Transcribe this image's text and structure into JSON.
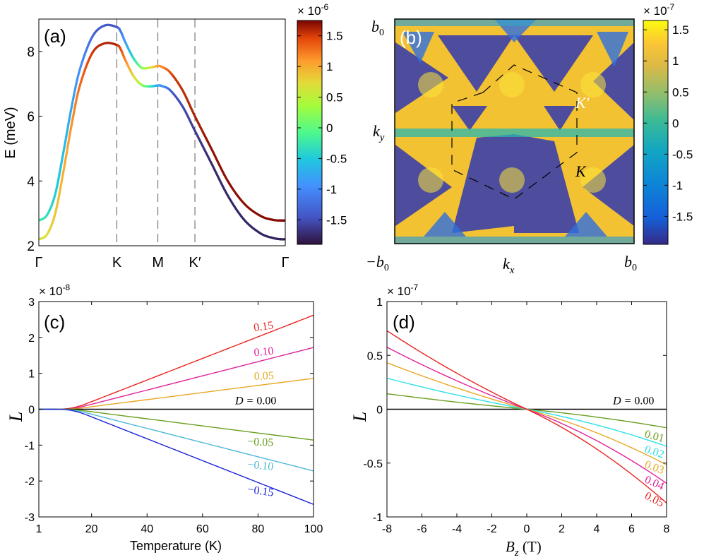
{
  "chart_data": [
    {
      "panel": "a",
      "type": "line",
      "label": "(a)",
      "ylabel": "E (meV)",
      "xlabel": "",
      "ylim": [
        2,
        9
      ],
      "yticks": [
        2,
        4,
        6,
        8
      ],
      "xtick_labels": [
        "Γ",
        "K",
        "M",
        "K′",
        "Γ"
      ],
      "x": [
        0,
        0.2,
        0.4,
        0.6,
        0.8,
        1.0,
        1.3,
        1.6,
        1.9,
        2.0,
        2.1,
        2.3,
        2.5,
        2.7,
        2.9,
        3.0,
        3.2,
        3.5,
        3.8,
        4.2,
        4.6,
        5.0,
        5.4,
        5.7,
        5.9,
        6.0
      ],
      "series": [
        {
          "name": "upper band",
          "values": [
            2.78,
            2.95,
            3.6,
            4.9,
            6.3,
            7.45,
            8.45,
            8.8,
            8.75,
            8.6,
            8.3,
            7.8,
            7.5,
            7.5,
            7.55,
            7.52,
            7.35,
            6.8,
            6.0,
            5.0,
            4.0,
            3.3,
            2.92,
            2.8,
            2.78,
            2.78
          ]
        },
        {
          "name": "lower band",
          "values": [
            2.2,
            2.35,
            3.0,
            4.3,
            5.75,
            6.95,
            7.95,
            8.25,
            8.2,
            8.05,
            7.75,
            7.25,
            6.97,
            6.92,
            6.95,
            6.93,
            6.8,
            6.3,
            5.55,
            4.55,
            3.55,
            2.8,
            2.38,
            2.24,
            2.2,
            2.2
          ]
        }
      ],
      "colorbar": {
        "ticks": [
          "1.5",
          "1",
          "0.5",
          "0",
          "-0.5",
          "-1",
          "-1.5"
        ],
        "tick_values": [
          1.5,
          1,
          0.5,
          0,
          -0.5,
          -1,
          -1.5
        ],
        "range": [
          -1.9,
          1.75
        ],
        "exponent_base": "× 10",
        "exponent": "-6",
        "colormap": "turbo"
      }
    },
    {
      "panel": "b",
      "type": "heatmap",
      "label": "(b)",
      "xlabel": "k",
      "xlabel_sub": "x",
      "ylabel": "k",
      "ylabel_sub": "y",
      "x_left": "−b",
      "x_right": "b",
      "y_top": "b",
      "tick_sub": "0",
      "point_labels": [
        "K′",
        "K"
      ],
      "colorbar": {
        "ticks": [
          "1.5",
          "1",
          "0.5",
          "0",
          "-0.5",
          "-1",
          "-1.5"
        ],
        "tick_values": [
          1.5,
          1,
          0.5,
          0,
          -0.5,
          -1,
          -1.5
        ],
        "range": [
          -1.95,
          1.65
        ],
        "exponent_base": "× 10",
        "exponent": "-7",
        "colormap": "parula"
      }
    },
    {
      "panel": "c",
      "type": "line",
      "label": "(c)",
      "xlabel": "Temperature (K)",
      "ylabel": "L",
      "xlim": [
        1,
        100
      ],
      "ylim": [
        -3,
        3
      ],
      "xticks": [
        1,
        20,
        40,
        60,
        80,
        100
      ],
      "yticks": [
        -3,
        -2,
        -1,
        0,
        1,
        2,
        3
      ],
      "exponent_base": "× 10",
      "exponent": "-8",
      "dm_prefix": "D = ",
      "series": [
        {
          "name": "0.15",
          "D": 0.15,
          "color": "#e8231f",
          "endpoint": 2.62
        },
        {
          "name": "0.10",
          "D": 0.1,
          "color": "#e0239b",
          "endpoint": 1.72
        },
        {
          "name": "0.05",
          "D": 0.05,
          "color": "#e8a824",
          "endpoint": 0.86
        },
        {
          "name": "0.00",
          "D": 0.0,
          "color": "#000000",
          "endpoint": 0
        },
        {
          "name": "−0.05",
          "D": -0.05,
          "color": "#6a9e1f",
          "endpoint": -0.86
        },
        {
          "name": "−0.10",
          "D": -0.1,
          "color": "#4cb8d8",
          "endpoint": -1.72
        },
        {
          "name": "−0.15",
          "D": -0.15,
          "color": "#1a22d8",
          "endpoint": -2.65
        }
      ]
    },
    {
      "panel": "d",
      "type": "line",
      "label": "(d)",
      "xlabel": "B",
      "xlabel_sub": "z",
      "xlabel_unit": " (T)",
      "ylabel": "L",
      "xlim": [
        -8,
        8
      ],
      "ylim": [
        -1,
        1
      ],
      "xticks": [
        -8,
        -6,
        -4,
        -2,
        0,
        2,
        4,
        6,
        8
      ],
      "yticks": [
        -1,
        -0.5,
        0,
        0.5,
        1
      ],
      "ytick_labels": [
        "-1",
        "-0.5",
        "0",
        "0.5",
        "1"
      ],
      "exponent_base": "× 10",
      "exponent": "-7",
      "dm_prefix": "D = ",
      "series": [
        {
          "name": "0.00",
          "D": 0.0,
          "color": "#000000",
          "endpoint": 0
        },
        {
          "name": "0.01",
          "D": 0.01,
          "color": "#6a9e1f",
          "endpoint": 0.16
        },
        {
          "name": "0.02",
          "D": 0.02,
          "color": "#2ce0e8",
          "endpoint": 0.32
        },
        {
          "name": "0.03",
          "D": 0.03,
          "color": "#e8a824",
          "endpoint": 0.48
        },
        {
          "name": "0.04",
          "D": 0.04,
          "color": "#e0239b",
          "endpoint": 0.64
        },
        {
          "name": "0.05",
          "D": 0.05,
          "color": "#e8231f",
          "endpoint": 0.81
        }
      ]
    }
  ]
}
